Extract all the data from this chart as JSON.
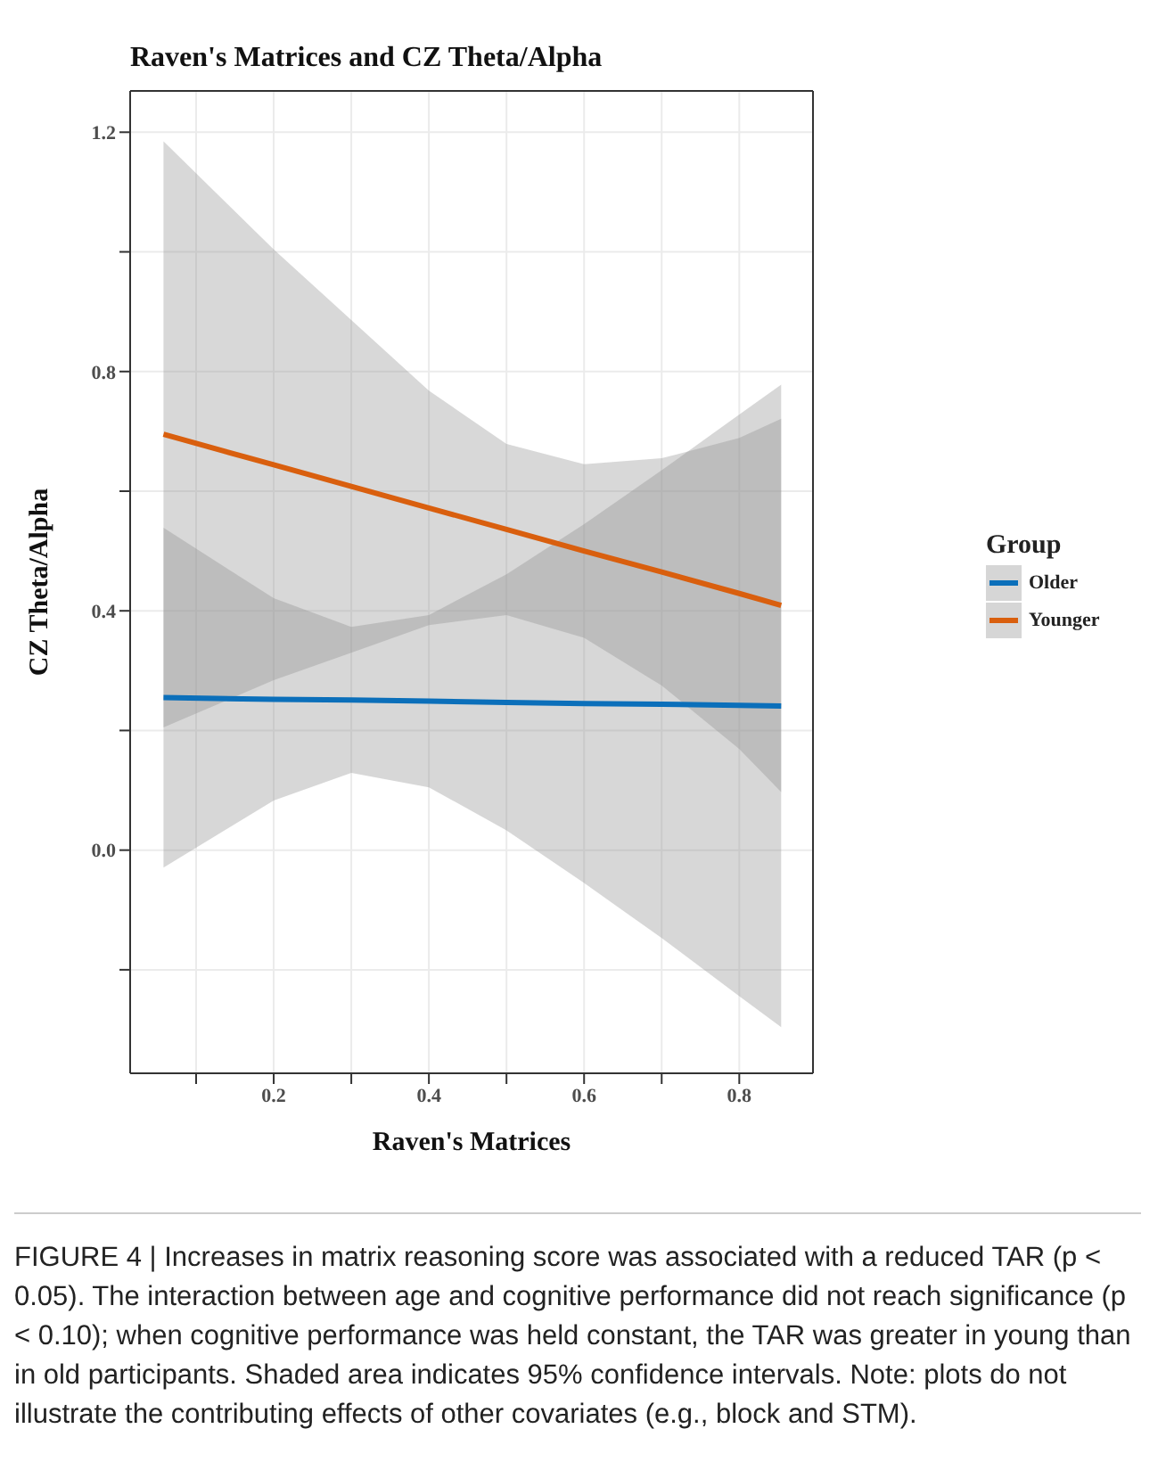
{
  "chart_data": {
    "type": "line",
    "title": "Raven's Matrices and CZ Theta/Alpha",
    "xlabel": "Raven's Matrices",
    "ylabel": "CZ Theta/Alpha",
    "legend_title": "Group",
    "x": [
      0.058,
      0.2,
      0.3,
      0.4,
      0.5,
      0.6,
      0.7,
      0.8,
      0.854
    ],
    "series": [
      {
        "name": "Older",
        "color": "#0b6fba",
        "values": [
          0.255,
          0.252,
          0.251,
          0.249,
          0.247,
          0.245,
          0.244,
          0.242,
          0.241
        ],
        "lower": [
          -0.029,
          0.083,
          0.129,
          0.105,
          0.033,
          -0.055,
          -0.147,
          -0.244,
          -0.296
        ],
        "upper": [
          0.539,
          0.421,
          0.373,
          0.393,
          0.461,
          0.545,
          0.635,
          0.728,
          0.778
        ]
      },
      {
        "name": "Younger",
        "color": "#d95f0e",
        "values": [
          0.695,
          0.644,
          0.608,
          0.572,
          0.536,
          0.5,
          0.465,
          0.429,
          0.409
        ],
        "lower": [
          0.205,
          0.284,
          0.33,
          0.376,
          0.393,
          0.355,
          0.275,
          0.169,
          0.097
        ],
        "upper": [
          1.185,
          1.004,
          0.886,
          0.768,
          0.679,
          0.645,
          0.655,
          0.689,
          0.721
        ]
      }
    ],
    "xlim": [
      0.015,
      0.895
    ],
    "xticks": [
      {
        "value": 0.1,
        "label": null
      },
      0.2,
      {
        "value": 0.3,
        "label": null
      },
      0.4,
      {
        "value": 0.5,
        "label": null
      },
      0.6,
      {
        "value": 0.7,
        "label": null
      },
      0.8
    ],
    "ylim": [
      -0.373,
      1.269
    ],
    "yticks": [
      {
        "value": -0.2,
        "label": null
      },
      {
        "value": 0,
        "label": "0.0"
      },
      {
        "value": 0.2,
        "label": null
      },
      0.4,
      {
        "value": 0.6,
        "label": null
      },
      0.8,
      {
        "value": 1.0,
        "label": null
      },
      1.2
    ],
    "grid": true,
    "legend": "right",
    "marker": "none",
    "line_style": "solid",
    "annotations": [
      "FIGURE 4 | Increases in matrix reasoning score was associated with a reduced TAR (p < 0.05). The interaction between age and cognitive performance did not reach significance (p < 0.10); when cognitive performance was held constant, the TAR was greater in young than in old participants. Shaded area indicates 95% confidence intervals. Note: plots do not illustrate the contributing effects of other covariates (e.g., block and STM)."
    ]
  }
}
